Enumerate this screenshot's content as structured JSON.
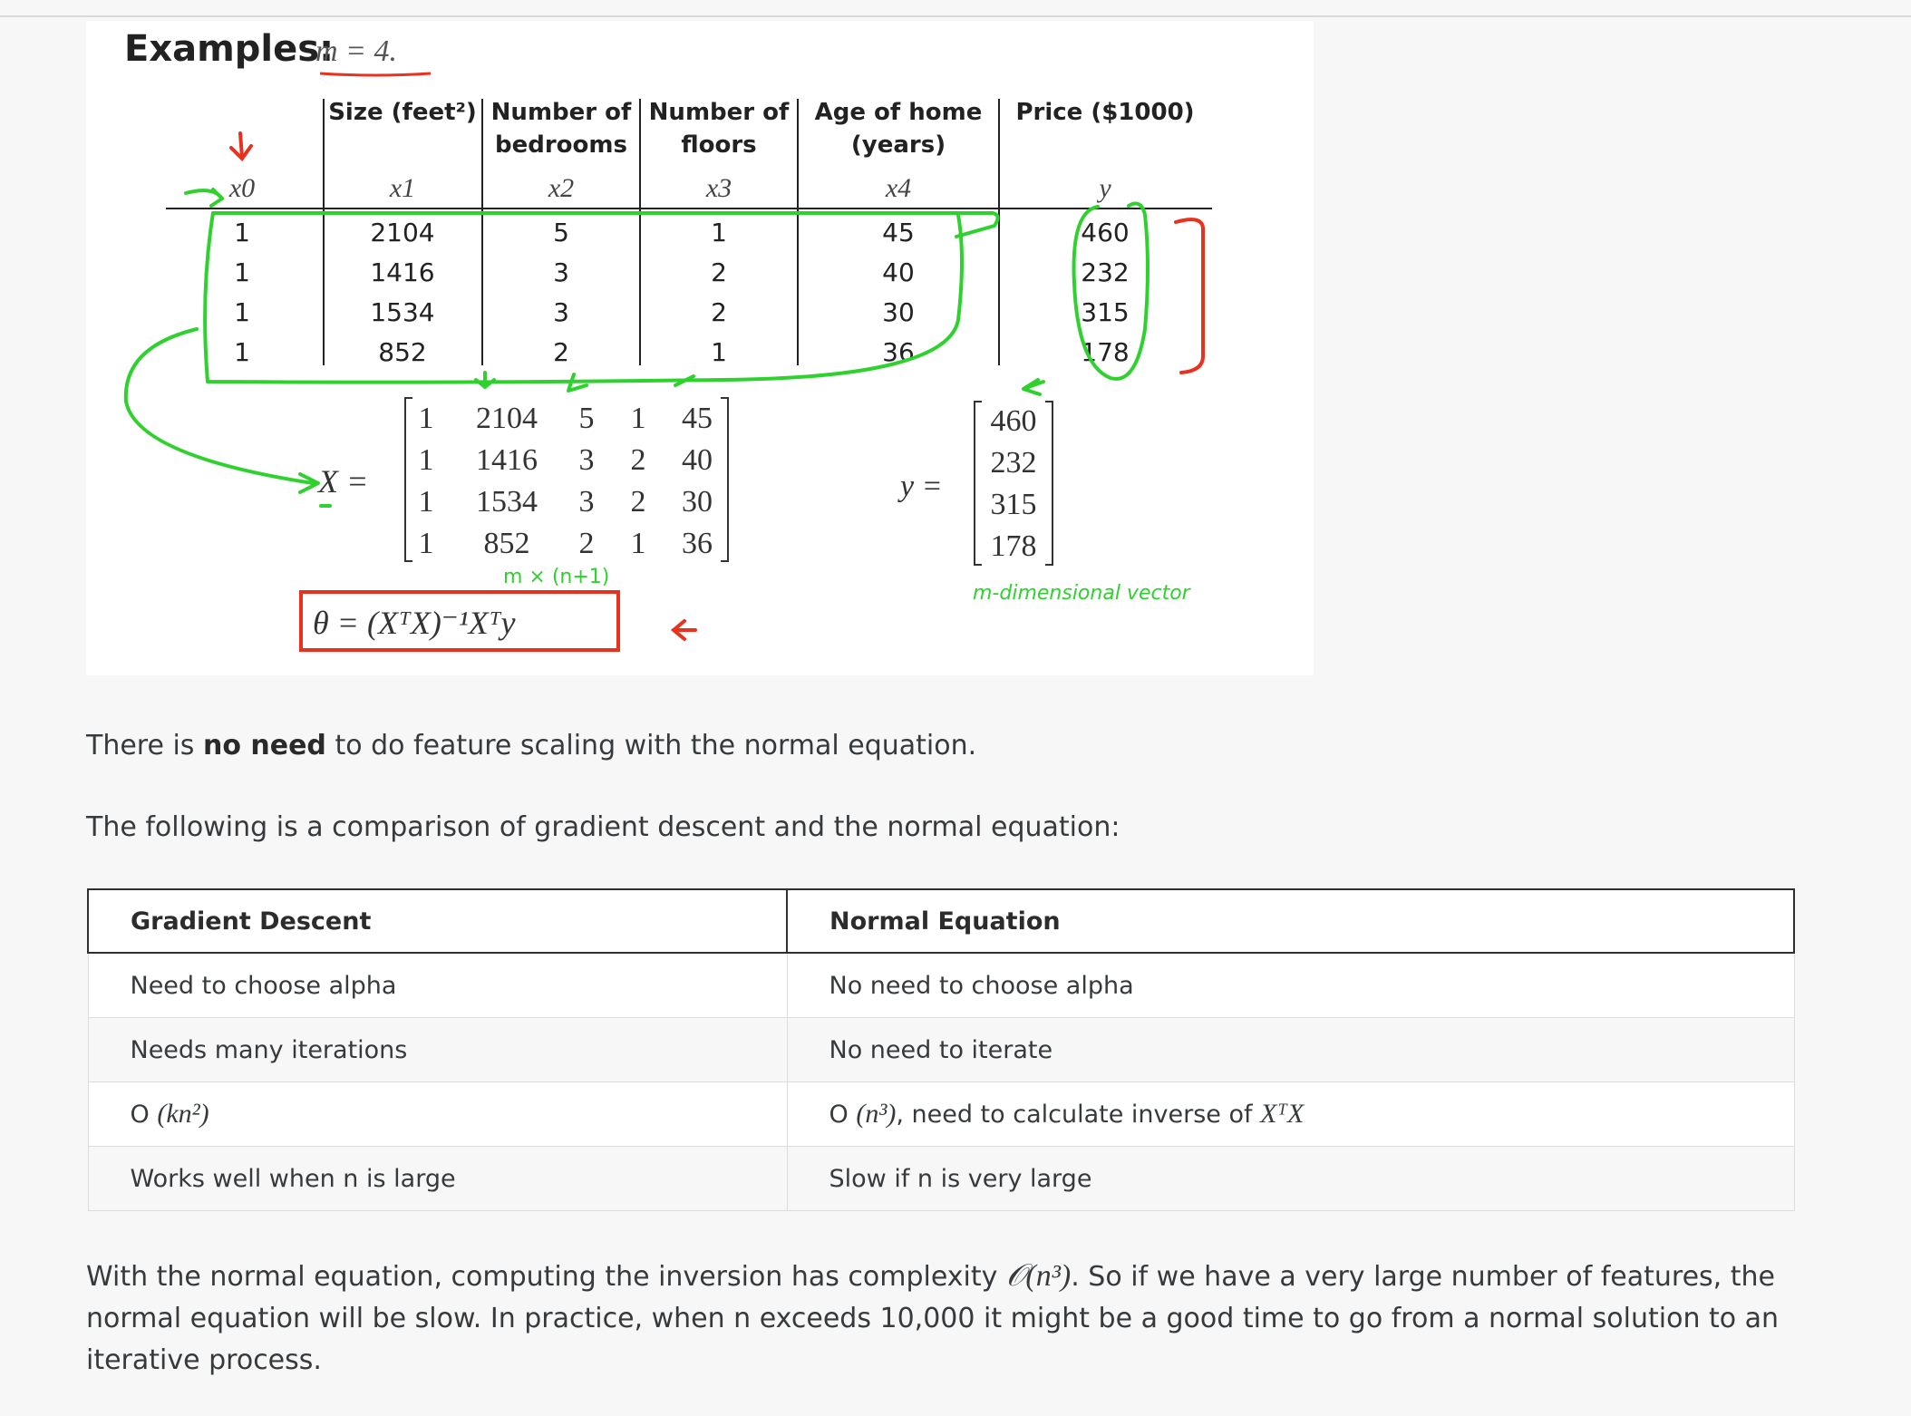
{
  "lecture_slide": {
    "heading_label": "Examples:",
    "heading_math": "m = 4.",
    "columns": [
      {
        "header_line1": "",
        "header_line2": "",
        "symbol": "x0"
      },
      {
        "header_line1": "Size (feet²)",
        "header_line2": "",
        "symbol": "x1"
      },
      {
        "header_line1": "Number of",
        "header_line2": "bedrooms",
        "symbol": "x2"
      },
      {
        "header_line1": "Number of",
        "header_line2": "floors",
        "symbol": "x3"
      },
      {
        "header_line1": "Age of home",
        "header_line2": "(years)",
        "symbol": "x4"
      },
      {
        "header_line1": "Price ($1000)",
        "header_line2": "",
        "symbol": "y"
      }
    ],
    "rows": [
      [
        "1",
        "2104",
        "5",
        "1",
        "45",
        "460"
      ],
      [
        "1",
        "1416",
        "3",
        "2",
        "40",
        "232"
      ],
      [
        "1",
        "1534",
        "3",
        "2",
        "30",
        "315"
      ],
      [
        "1",
        "852",
        "2",
        "1",
        "36",
        "178"
      ]
    ],
    "x_matrix_label": "X =",
    "x_matrix": [
      [
        "1",
        "2104",
        "5",
        "1",
        "45"
      ],
      [
        "1",
        "1416",
        "3",
        "2",
        "40"
      ],
      [
        "1",
        "1534",
        "3",
        "2",
        "30"
      ],
      [
        "1",
        "852",
        "2",
        "1",
        "36"
      ]
    ],
    "y_vector_label": "y =",
    "y_vector": [
      "460",
      "232",
      "315",
      "178"
    ],
    "note_dimensions": "m × (n+1)",
    "note_vector": "m-dimensional vector",
    "formula": "θ = (XᵀX)⁻¹Xᵀy",
    "colors": {
      "handwriting_green": "#2fd12f",
      "handwriting_red": "#e8321e"
    }
  },
  "paragraph1": {
    "before": "There is ",
    "bold": "no need",
    "after": " to do feature scaling with the normal equation."
  },
  "paragraph2": "The following is a comparison of gradient descent and the normal equation:",
  "comparison_table": {
    "headers": [
      "Gradient Descent",
      "Normal Equation"
    ],
    "rows": [
      {
        "left_text": "Need to choose alpha",
        "right_text": "No need to choose alpha"
      },
      {
        "left_text": "Needs many iterations",
        "right_text": "No need to iterate"
      },
      {
        "left_prefix": "O ",
        "left_math": "(kn²)",
        "right_prefix": "O ",
        "right_math": "(n³)",
        "right_suffix": ", need to calculate inverse of ",
        "right_math2": "XᵀX"
      },
      {
        "left_text": "Works well when n is large",
        "right_text": "Slow if n is very large"
      }
    ]
  },
  "paragraph3": {
    "before": "With the normal equation, computing the inversion has complexity ",
    "math": "𝒪(n³)",
    "after": ". So if we have a very large number of features, the normal equation will be slow. In practice, when n exceeds 10,000 it might be a good time to go from a normal solution to an iterative process."
  }
}
